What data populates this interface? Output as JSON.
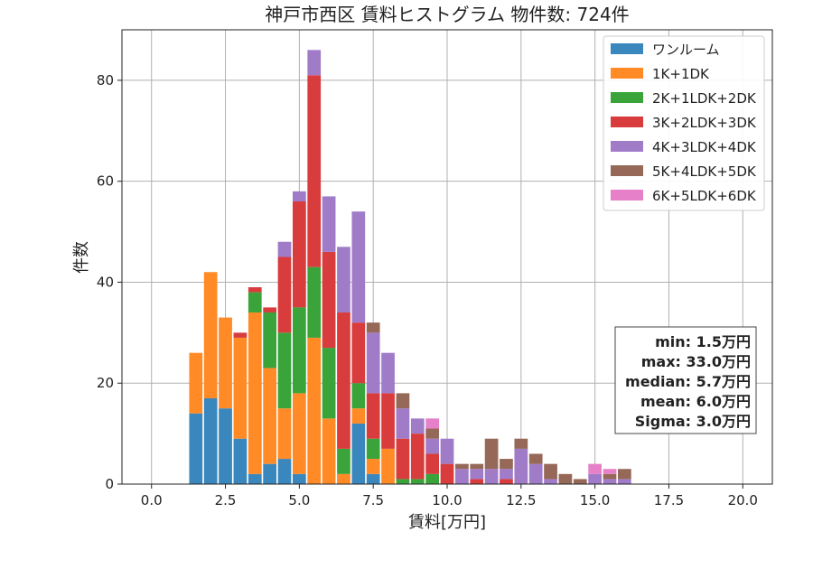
{
  "chart_data": {
    "type": "bar",
    "stacked": true,
    "title": "神戸市西区 賃料ヒストグラム 物件数: 724件",
    "xlabel": "賃料[万円]",
    "ylabel": "件数",
    "xlim": [
      -1.0,
      21.0
    ],
    "ylim": [
      0,
      90
    ],
    "xticks": [
      0.0,
      2.5,
      5.0,
      7.5,
      10.0,
      12.5,
      15.0,
      17.5,
      20.0
    ],
    "xtick_labels": [
      "0.0",
      "2.5",
      "5.0",
      "7.5",
      "10.0",
      "12.5",
      "15.0",
      "17.5",
      "20.0"
    ],
    "yticks": [
      0,
      20,
      40,
      60,
      80
    ],
    "ytick_labels": [
      "0",
      "20",
      "40",
      "60",
      "80"
    ],
    "grid": true,
    "legend_position": "top-right",
    "bin_width": 0.5,
    "bins": [
      1.5,
      2.0,
      2.5,
      3.0,
      3.5,
      4.0,
      4.5,
      5.0,
      5.5,
      6.0,
      6.5,
      7.0,
      7.5,
      8.0,
      8.5,
      9.0,
      9.5,
      10.0,
      10.5,
      11.0,
      11.5,
      12.0,
      12.5,
      13.0,
      13.5,
      14.0,
      14.5,
      15.0,
      15.5,
      16.0
    ],
    "series": [
      {
        "name": "ワンルーム",
        "color": "#3a87be",
        "values": [
          14,
          17,
          15,
          9,
          2,
          4,
          5,
          2,
          0,
          0,
          0,
          12,
          2,
          0,
          0,
          0,
          0,
          0,
          0,
          0,
          0,
          0,
          0,
          0,
          0,
          0,
          0,
          0,
          0,
          0
        ]
      },
      {
        "name": "1K+1DK",
        "color": "#ff8a26",
        "values": [
          12,
          25,
          18,
          20,
          32,
          19,
          10,
          16,
          29,
          13,
          2,
          3,
          3,
          7,
          0,
          0,
          0,
          0,
          0,
          0,
          0,
          0,
          0,
          0,
          0,
          0,
          0,
          0,
          0,
          0
        ]
      },
      {
        "name": "2K+1LDK+2DK",
        "color": "#3aa43a",
        "values": [
          0,
          0,
          0,
          0,
          4,
          11,
          15,
          17,
          14,
          14,
          5,
          5,
          4,
          0,
          1,
          1,
          2,
          0,
          0,
          0,
          0,
          0,
          0,
          0,
          0,
          0,
          0,
          0,
          0,
          0
        ]
      },
      {
        "name": "3K+2LDK+3DK",
        "color": "#d83c3c",
        "values": [
          0,
          0,
          0,
          1,
          1,
          1,
          15,
          21,
          38,
          19,
          27,
          12,
          9,
          11,
          8,
          9,
          4,
          4,
          0,
          1,
          0,
          1,
          0,
          0,
          0,
          0,
          0,
          0,
          0,
          0
        ]
      },
      {
        "name": "4K+3LDK+4DK",
        "color": "#a07cc8",
        "values": [
          0,
          0,
          0,
          0,
          0,
          0,
          3,
          2,
          5,
          11,
          13,
          22,
          12,
          8,
          6,
          3,
          3,
          5,
          3,
          2,
          3,
          2,
          7,
          4,
          1,
          0,
          0,
          2,
          1,
          1
        ]
      },
      {
        "name": "5K+4LDK+5DK",
        "color": "#966858",
        "values": [
          0,
          0,
          0,
          0,
          0,
          0,
          0,
          0,
          0,
          0,
          0,
          0,
          2,
          0,
          3,
          0,
          2,
          0,
          1,
          1,
          6,
          2,
          2,
          2,
          3,
          2,
          1,
          0,
          1,
          2
        ]
      },
      {
        "name": "6K+5LDK+6DK",
        "color": "#e680c8",
        "values": [
          0,
          0,
          0,
          0,
          0,
          0,
          0,
          0,
          0,
          0,
          0,
          0,
          0,
          0,
          0,
          0,
          2,
          0,
          0,
          0,
          0,
          0,
          0,
          0,
          0,
          0,
          0,
          2,
          1,
          0
        ]
      }
    ],
    "stats": {
      "min": "min: 1.5万円",
      "max": "max: 33.0万円",
      "median": "median: 5.7万円",
      "mean": "mean: 6.0万円",
      "sigma": "Sigma: 3.0万円"
    }
  }
}
